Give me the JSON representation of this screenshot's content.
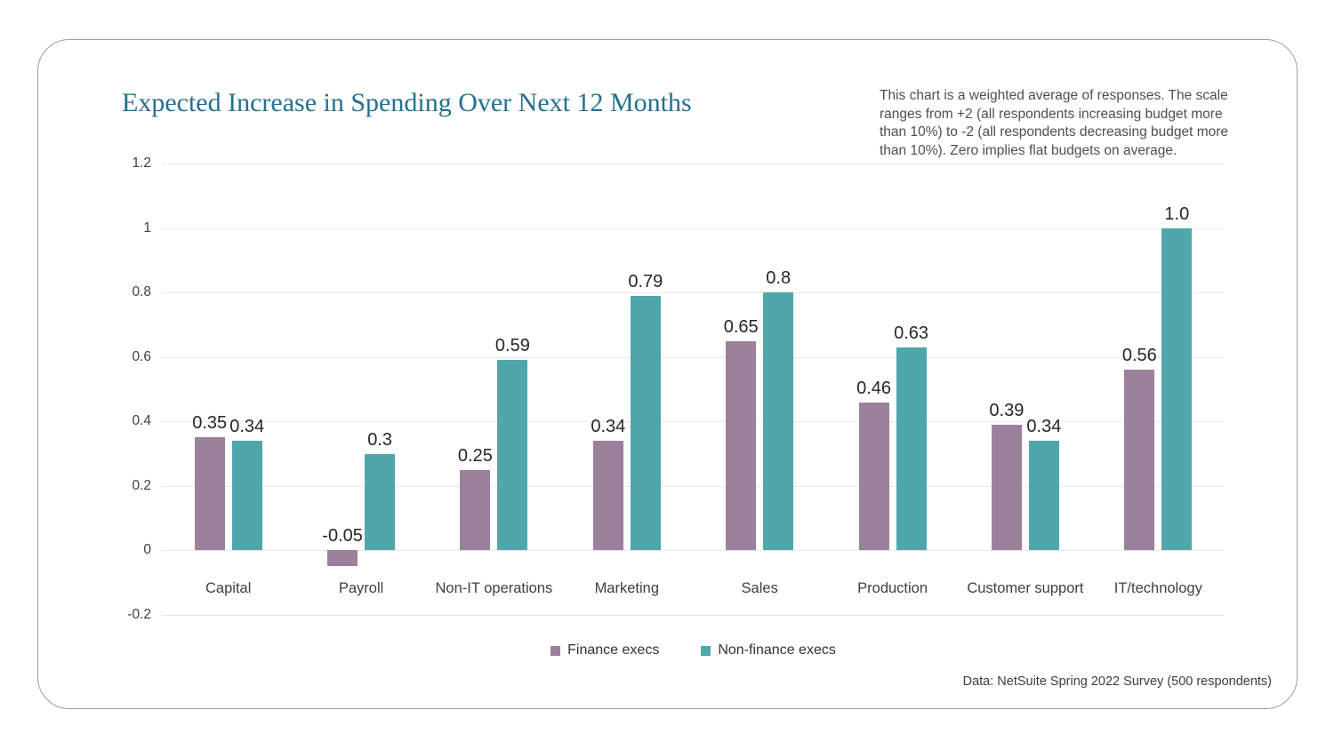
{
  "card": {
    "title": "Expected Increase in Spending Over Next 12 Months",
    "note": "This chart is a weighted average of responses. The scale ranges from +2 (all respondents increasing budget more than 10%) to -2 (all respondents decreasing budget more than 10%). Zero implies flat budgets on average.",
    "source": "Data: NetSuite Spring 2022 Survey (500 respondents)"
  },
  "chart_data": {
    "type": "bar",
    "title": "Expected Increase in Spending Over Next 12 Months",
    "categories": [
      "Capital",
      "Payroll",
      "Non-IT operations",
      "Marketing",
      "Sales",
      "Production",
      "Customer support",
      "IT/technology"
    ],
    "series": [
      {
        "name": "Finance execs",
        "color": "#9b819c",
        "values": [
          0.35,
          -0.05,
          0.25,
          0.34,
          0.65,
          0.46,
          0.39,
          0.56
        ],
        "labels": [
          "0.35",
          "-0.05",
          "0.25",
          "0.34",
          "0.65",
          "0.46",
          "0.39",
          "0.56"
        ]
      },
      {
        "name": "Non-finance execs",
        "color": "#4fa7ab",
        "values": [
          0.34,
          0.3,
          0.59,
          0.79,
          0.8,
          0.63,
          0.34,
          1.0
        ],
        "labels": [
          "0.34",
          "0.3",
          "0.59",
          "0.79",
          "0.8",
          "0.63",
          "0.34",
          "1.0"
        ]
      }
    ],
    "xlabel": "",
    "ylabel": "",
    "ylim": [
      -0.2,
      1.2
    ],
    "yticks": [
      1.2,
      1,
      0.8,
      0.6,
      0.4,
      0.2,
      0,
      -0.2
    ],
    "ytick_labels": [
      "1.2",
      "1",
      "0.8",
      "0.6",
      "0.4",
      "0.2",
      "0",
      "-0.2"
    ],
    "grid": true,
    "legend_position": "bottom"
  }
}
